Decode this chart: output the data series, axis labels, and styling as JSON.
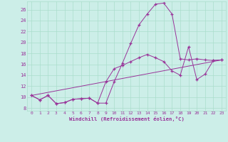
{
  "background_color": "#cceee8",
  "line_color": "#993399",
  "grid_color": "#aaddcc",
  "xlabel": "Windchill (Refroidissement éolien,°C)",
  "xlim": [
    -0.5,
    23.5
  ],
  "ylim": [
    7.5,
    27.5
  ],
  "xticks": [
    0,
    1,
    2,
    3,
    4,
    5,
    6,
    7,
    8,
    9,
    10,
    11,
    12,
    13,
    14,
    15,
    16,
    17,
    18,
    19,
    20,
    21,
    22,
    23
  ],
  "yticks": [
    8,
    10,
    12,
    14,
    16,
    18,
    20,
    22,
    24,
    26
  ],
  "series1_x": [
    0,
    1,
    2,
    3,
    4,
    5,
    6,
    7,
    8,
    9,
    10,
    11,
    12,
    13,
    14,
    15,
    16,
    17,
    18,
    19,
    20,
    21,
    22,
    23
  ],
  "series1_y": [
    10.3,
    9.5,
    10.3,
    8.8,
    9.0,
    9.6,
    9.7,
    9.8,
    8.9,
    8.9,
    12.8,
    16.2,
    19.8,
    23.2,
    25.2,
    27.0,
    27.2,
    25.2,
    17.0,
    16.8,
    17.0,
    16.8,
    16.7,
    16.8
  ],
  "series2_x": [
    0,
    1,
    2,
    3,
    4,
    5,
    6,
    7,
    8,
    9,
    10,
    11,
    12,
    13,
    14,
    15,
    16,
    17,
    18,
    19,
    20,
    21,
    22,
    23
  ],
  "series2_y": [
    10.3,
    9.5,
    10.3,
    8.8,
    9.0,
    9.6,
    9.7,
    9.8,
    8.9,
    12.8,
    15.2,
    15.8,
    16.5,
    17.2,
    17.8,
    17.2,
    16.5,
    14.8,
    14.0,
    19.2,
    13.2,
    14.2,
    16.7,
    16.8
  ],
  "series3_x": [
    0,
    23
  ],
  "series3_y": [
    10.3,
    16.8
  ]
}
